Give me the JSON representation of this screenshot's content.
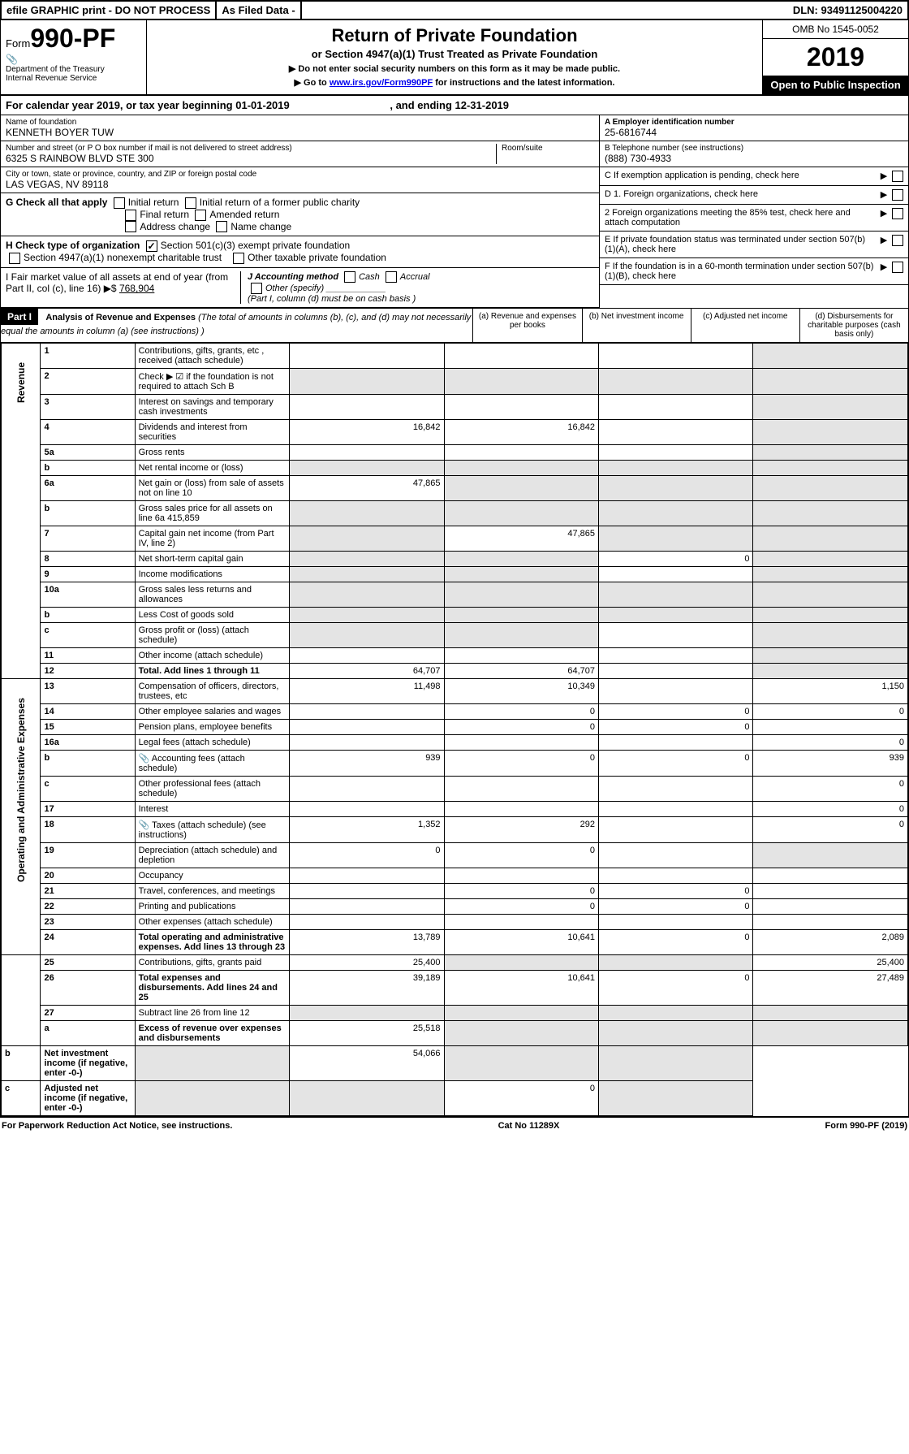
{
  "topbar": {
    "efile": "efile GRAPHIC print - DO NOT PROCESS",
    "asfiled": "As Filed Data -",
    "dln": "DLN: 93491125004220"
  },
  "header": {
    "form_prefix": "Form",
    "form_number": "990-PF",
    "dept1": "Department of the Treasury",
    "dept2": "Internal Revenue Service",
    "title": "Return of Private Foundation",
    "subtitle": "or Section 4947(a)(1) Trust Treated as Private Foundation",
    "note1": "▶ Do not enter social security numbers on this form as it may be made public.",
    "note2_pre": "▶ Go to ",
    "note2_link": "www.irs.gov/Form990PF",
    "note2_post": " for instructions and the latest information.",
    "omb": "OMB No 1545-0052",
    "year": "2019",
    "open": "Open to Public Inspection"
  },
  "calendar": {
    "text_pre": "For calendar year 2019, or tax year beginning ",
    "begin": "01-01-2019",
    "text_mid": " , and ending ",
    "end": "12-31-2019"
  },
  "foundation": {
    "name_label": "Name of foundation",
    "name": "KENNETH BOYER TUW",
    "ein_label": "A Employer identification number",
    "ein": "25-6816744",
    "addr_label": "Number and street (or P O  box number if mail is not delivered to street address)",
    "addr": "6325 S RAINBOW BLVD STE 300",
    "room_label": "Room/suite",
    "phone_label": "B Telephone number (see instructions)",
    "phone": "(888) 730-4933",
    "city_label": "City or town, state or province, country, and ZIP or foreign postal code",
    "city": "LAS VEGAS, NV  89118",
    "c_label": "C If exemption application is pending, check here"
  },
  "sectionG": {
    "label": "G Check all that apply",
    "opts": [
      "Initial return",
      "Initial return of a former public charity",
      "Final return",
      "Amended return",
      "Address change",
      "Name change"
    ]
  },
  "sectionD": {
    "d1": "D 1. Foreign organizations, check here",
    "d2": "2 Foreign organizations meeting the 85% test, check here and attach computation",
    "e": "E  If private foundation status was terminated under section 507(b)(1)(A), check here",
    "f": "F  If the foundation is in a 60-month termination under section 507(b)(1)(B), check here"
  },
  "sectionH": {
    "label": "H Check type of organization",
    "opt1": "Section 501(c)(3) exempt private foundation",
    "opt2": "Section 4947(a)(1) nonexempt charitable trust",
    "opt3": "Other taxable private foundation"
  },
  "sectionI": {
    "label": "I Fair market value of all assets at end of year (from Part II, col  (c), line 16) ▶$",
    "value": "768,904",
    "j_label": "J Accounting method",
    "j_opts": [
      "Cash",
      "Accrual",
      "Other (specify)"
    ],
    "j_note": "(Part I, column (d) must be on cash basis )"
  },
  "part1": {
    "badge": "Part I",
    "title": "Analysis of Revenue and Expenses",
    "title_note": "(The total of amounts in columns (b), (c), and (d) may not necessarily equal the amounts in column (a) (see instructions) )",
    "cols": {
      "a": "(a) Revenue and expenses per books",
      "b": "(b) Net investment income",
      "c": "(c) Adjusted net income",
      "d": "(d) Disbursements for charitable purposes (cash basis only)"
    },
    "side_labels": {
      "rev": "Revenue",
      "exp": "Operating and Administrative Expenses"
    }
  },
  "rows": [
    {
      "n": "1",
      "d": "Contributions, gifts, grants, etc , received (attach schedule)",
      "a": "",
      "b": "",
      "c": "",
      "dd": "",
      "side": "rev",
      "shade_c": false,
      "shade_d": true
    },
    {
      "n": "2",
      "d": "Check ▶ ☑ if the foundation is not required to attach Sch  B",
      "a": "",
      "b": "",
      "c": "",
      "dd": "",
      "shade_d": true,
      "shade_a": true,
      "shade_b": true,
      "shade_c": true
    },
    {
      "n": "3",
      "d": "Interest on savings and temporary cash investments",
      "a": "",
      "b": "",
      "c": "",
      "dd": "",
      "shade_d": true
    },
    {
      "n": "4",
      "d": "Dividends and interest from securities",
      "a": "16,842",
      "b": "16,842",
      "c": "",
      "dd": "",
      "shade_d": true
    },
    {
      "n": "5a",
      "d": "Gross rents",
      "a": "",
      "b": "",
      "c": "",
      "dd": "",
      "shade_d": true
    },
    {
      "n": "b",
      "d": "Net rental income or (loss)",
      "a": "",
      "b": "",
      "c": "",
      "dd": "",
      "shade_a": true,
      "shade_b": true,
      "shade_c": true,
      "shade_d": true
    },
    {
      "n": "6a",
      "d": "Net gain or (loss) from sale of assets not on line 10",
      "a": "47,865",
      "b": "",
      "c": "",
      "dd": "",
      "shade_b": true,
      "shade_c": true,
      "shade_d": true
    },
    {
      "n": "b",
      "d": "Gross sales price for all assets on line 6a           415,859",
      "a": "",
      "b": "",
      "c": "",
      "dd": "",
      "shade_a": true,
      "shade_b": true,
      "shade_c": true,
      "shade_d": true
    },
    {
      "n": "7",
      "d": "Capital gain net income (from Part IV, line 2)",
      "a": "",
      "b": "47,865",
      "c": "",
      "dd": "",
      "shade_a": true,
      "shade_c": true,
      "shade_d": true
    },
    {
      "n": "8",
      "d": "Net short-term capital gain",
      "a": "",
      "b": "",
      "c": "0",
      "dd": "",
      "shade_a": true,
      "shade_b": true,
      "shade_d": true
    },
    {
      "n": "9",
      "d": "Income modifications",
      "a": "",
      "b": "",
      "c": "",
      "dd": "",
      "shade_a": true,
      "shade_b": true,
      "shade_d": true
    },
    {
      "n": "10a",
      "d": "Gross sales less returns and allowances",
      "a": "",
      "b": "",
      "c": "",
      "dd": "",
      "shade_a": true,
      "shade_b": true,
      "shade_c": true,
      "shade_d": true
    },
    {
      "n": "b",
      "d": "Less  Cost of goods sold",
      "a": "",
      "b": "",
      "c": "",
      "dd": "",
      "shade_a": true,
      "shade_b": true,
      "shade_c": true,
      "shade_d": true
    },
    {
      "n": "c",
      "d": "Gross profit or (loss) (attach schedule)",
      "a": "",
      "b": "",
      "c": "",
      "dd": "",
      "shade_a": true,
      "shade_b": true,
      "shade_d": true
    },
    {
      "n": "11",
      "d": "Other income (attach schedule)",
      "a": "",
      "b": "",
      "c": "",
      "dd": "",
      "shade_d": true
    },
    {
      "n": "12",
      "d": "Total. Add lines 1 through 11",
      "a": "64,707",
      "b": "64,707",
      "c": "",
      "dd": "",
      "bold": true,
      "shade_d": true
    },
    {
      "n": "13",
      "d": "Compensation of officers, directors, trustees, etc",
      "a": "11,498",
      "b": "10,349",
      "c": "",
      "dd": "1,150",
      "side": "exp"
    },
    {
      "n": "14",
      "d": "Other employee salaries and wages",
      "a": "",
      "b": "0",
      "c": "0",
      "dd": "0"
    },
    {
      "n": "15",
      "d": "Pension plans, employee benefits",
      "a": "",
      "b": "0",
      "c": "0",
      "dd": ""
    },
    {
      "n": "16a",
      "d": "Legal fees (attach schedule)",
      "a": "",
      "b": "",
      "c": "",
      "dd": "0"
    },
    {
      "n": "b",
      "d": "Accounting fees (attach schedule)",
      "a": "939",
      "b": "0",
      "c": "0",
      "dd": "939",
      "icon": true
    },
    {
      "n": "c",
      "d": "Other professional fees (attach schedule)",
      "a": "",
      "b": "",
      "c": "",
      "dd": "0"
    },
    {
      "n": "17",
      "d": "Interest",
      "a": "",
      "b": "",
      "c": "",
      "dd": "0"
    },
    {
      "n": "18",
      "d": "Taxes (attach schedule) (see instructions)",
      "a": "1,352",
      "b": "292",
      "c": "",
      "dd": "0",
      "icon": true
    },
    {
      "n": "19",
      "d": "Depreciation (attach schedule) and depletion",
      "a": "0",
      "b": "0",
      "c": "",
      "dd": "",
      "shade_d": true
    },
    {
      "n": "20",
      "d": "Occupancy",
      "a": "",
      "b": "",
      "c": "",
      "dd": ""
    },
    {
      "n": "21",
      "d": "Travel, conferences, and meetings",
      "a": "",
      "b": "0",
      "c": "0",
      "dd": ""
    },
    {
      "n": "22",
      "d": "Printing and publications",
      "a": "",
      "b": "0",
      "c": "0",
      "dd": ""
    },
    {
      "n": "23",
      "d": "Other expenses (attach schedule)",
      "a": "",
      "b": "",
      "c": "",
      "dd": ""
    },
    {
      "n": "24",
      "d": "Total operating and administrative expenses. Add lines 13 through 23",
      "a": "13,789",
      "b": "10,641",
      "c": "0",
      "dd": "2,089",
      "bold": true
    },
    {
      "n": "25",
      "d": "Contributions, gifts, grants paid",
      "a": "25,400",
      "b": "",
      "c": "",
      "dd": "25,400",
      "shade_b": true,
      "shade_c": true
    },
    {
      "n": "26",
      "d": "Total expenses and disbursements. Add lines 24 and 25",
      "a": "39,189",
      "b": "10,641",
      "c": "0",
      "dd": "27,489",
      "bold": true
    },
    {
      "n": "27",
      "d": "Subtract line 26 from line 12",
      "a": "",
      "b": "",
      "c": "",
      "dd": "",
      "shade_a": true,
      "shade_b": true,
      "shade_c": true,
      "shade_d": true
    },
    {
      "n": "a",
      "d": "Excess of revenue over expenses and disbursements",
      "a": "25,518",
      "b": "",
      "c": "",
      "dd": "",
      "bold": true,
      "shade_b": true,
      "shade_c": true,
      "shade_d": true
    },
    {
      "n": "b",
      "d": "Net investment income (if negative, enter -0-)",
      "a": "",
      "b": "54,066",
      "c": "",
      "dd": "",
      "bold": true,
      "shade_a": true,
      "shade_c": true,
      "shade_d": true
    },
    {
      "n": "c",
      "d": "Adjusted net income (if negative, enter -0-)",
      "a": "",
      "b": "",
      "c": "0",
      "dd": "",
      "bold": true,
      "shade_a": true,
      "shade_b": true,
      "shade_d": true
    }
  ],
  "footer": {
    "left": "For Paperwork Reduction Act Notice, see instructions.",
    "mid": "Cat No 11289X",
    "right": "Form 990-PF (2019)"
  }
}
